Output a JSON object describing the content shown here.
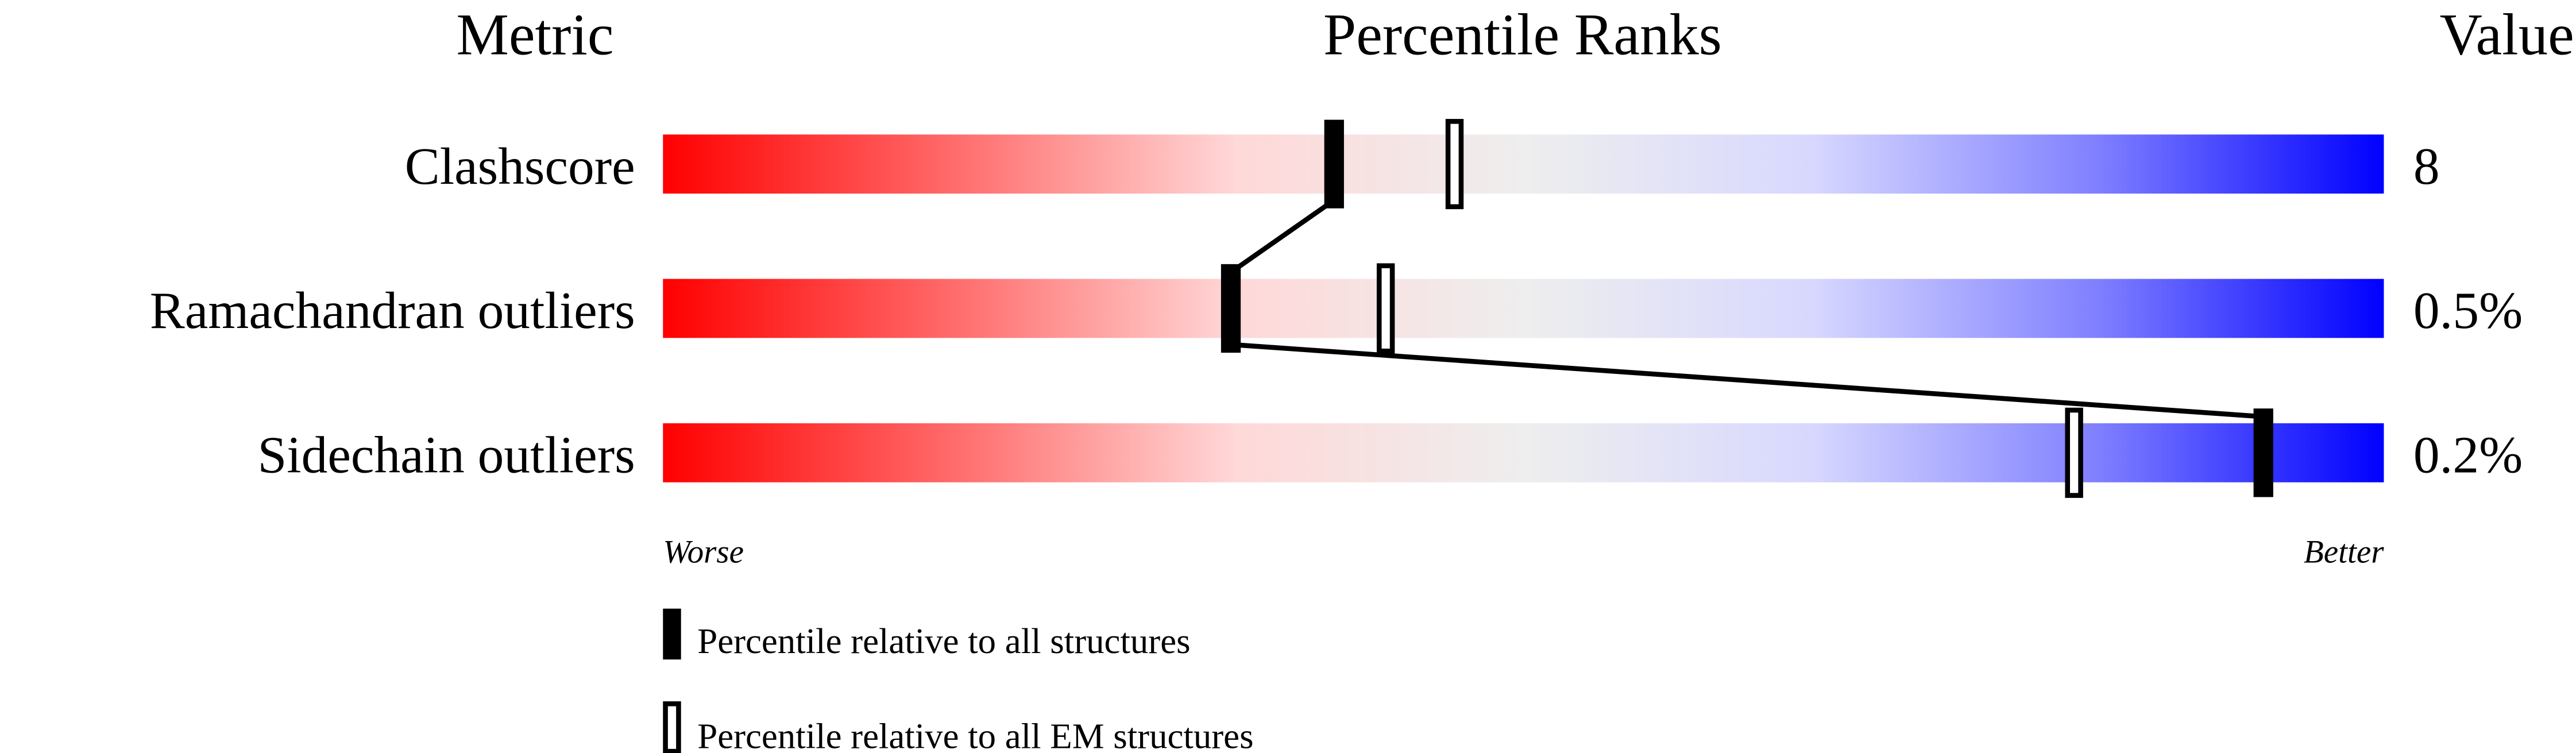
{
  "chart_data": {
    "type": "bar",
    "title": "Percentile Ranks",
    "column_headers": {
      "metric": "Metric",
      "ranks": "Percentile Ranks",
      "value": "Value"
    },
    "xlim": [
      0,
      100
    ],
    "axis_labels": {
      "left": "Worse",
      "right": "Better"
    },
    "gradient_colors": [
      "#ff0000",
      "#ff6a6a",
      "#ffd8d8",
      "#eeeeee",
      "#d8d8ff",
      "#8080ff",
      "#0000ff"
    ],
    "rows": [
      {
        "metric": "Clashscore",
        "value": "8",
        "percentile_all": 39,
        "percentile_em": 46
      },
      {
        "metric": "Ramachandran outliers",
        "value": "0.5%",
        "percentile_all": 33,
        "percentile_em": 42
      },
      {
        "metric": "Sidechain outliers",
        "value": "0.2%",
        "percentile_all": 93,
        "percentile_em": 82
      }
    ],
    "legend": [
      {
        "label": "Percentile relative to all structures",
        "marker": "filled"
      },
      {
        "label": "Percentile relative to all EM structures",
        "marker": "open"
      }
    ]
  }
}
